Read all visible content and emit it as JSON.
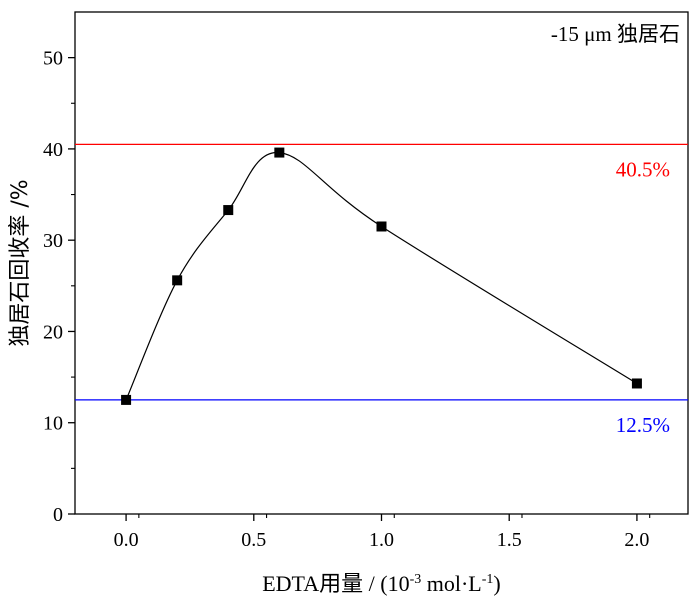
{
  "chart_data": {
    "type": "scatter",
    "x": [
      0.0,
      0.2,
      0.4,
      0.6,
      1.0,
      2.0
    ],
    "y": [
      12.5,
      25.6,
      33.3,
      39.6,
      31.5,
      14.3
    ],
    "curve": "smooth",
    "xlim": [
      -0.2,
      2.2
    ],
    "ylim": [
      0,
      55
    ],
    "xticks": [
      "0.0",
      "0.5",
      "1.0",
      "1.5",
      "2.0"
    ],
    "xtick_values": [
      0.0,
      0.5,
      1.0,
      1.5,
      2.0
    ],
    "yticks": [
      "0",
      "10",
      "20",
      "30",
      "40",
      "50"
    ],
    "ytick_values": [
      0,
      10,
      20,
      30,
      40,
      50
    ],
    "xlabel": {
      "prefix": "EDTA用量 / (10",
      "sup1": "-3",
      "middle": " mol·L",
      "sup2": "-1",
      "suffix": ")"
    },
    "ylabel": "独居石回收率 /%",
    "annotation": "-15 μm 独居石",
    "grid": false,
    "legend": "none",
    "reference_lines": [
      {
        "value": 40.5,
        "label": "40.5%",
        "color": "#ff0000"
      },
      {
        "value": 12.5,
        "label": "12.5%",
        "color": "#0000ff"
      }
    ],
    "marker_color": "#000000",
    "line_color": "#000000"
  }
}
